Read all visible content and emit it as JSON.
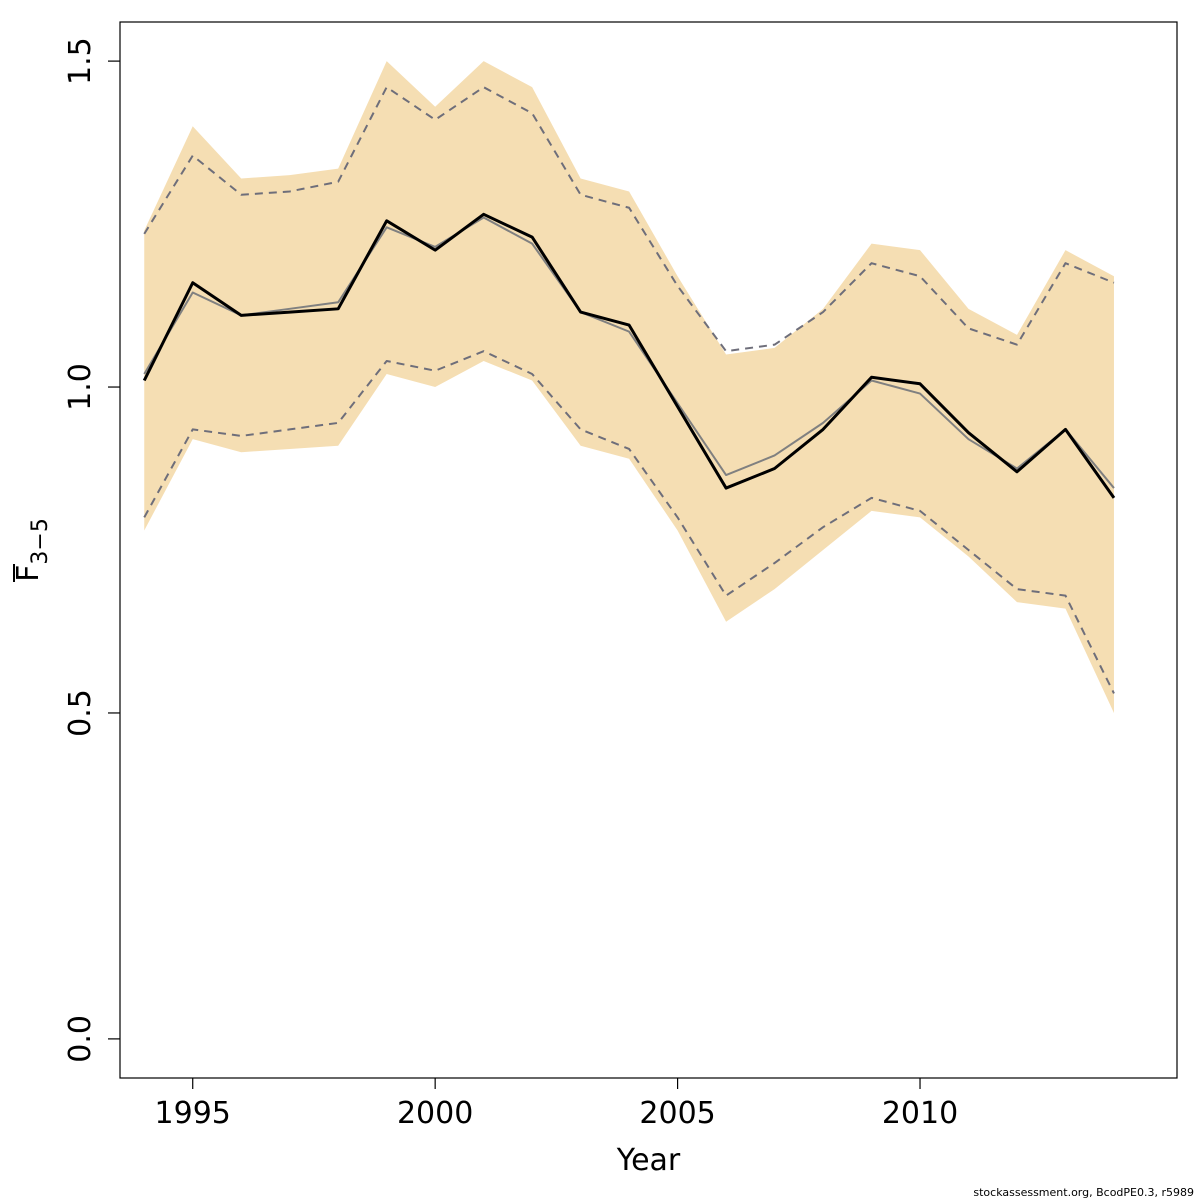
{
  "chart_data": {
    "type": "line",
    "title": "",
    "xlabel": "Year",
    "ylabel": {
      "main": "F",
      "subscript": "3−5",
      "overline": true
    },
    "xlim": [
      1993.5,
      2015.3
    ],
    "ylim": [
      -0.06,
      1.56
    ],
    "x_ticks": [
      1995,
      2000,
      2005,
      2010
    ],
    "y_ticks": [
      0.0,
      0.5,
      1.0,
      1.5
    ],
    "y_tick_labels": [
      "0.0",
      "0.5",
      "1.0",
      "1.5"
    ],
    "x": [
      1994,
      1995,
      1996,
      1997,
      1998,
      1999,
      2000,
      2001,
      2002,
      2003,
      2004,
      2005,
      2006,
      2007,
      2008,
      2009,
      2010,
      2011,
      2012,
      2013,
      2014
    ],
    "band": {
      "upper": [
        1.24,
        1.4,
        1.32,
        1.325,
        1.335,
        1.5,
        1.43,
        1.5,
        1.46,
        1.32,
        1.3,
        1.17,
        1.05,
        1.06,
        1.12,
        1.22,
        1.21,
        1.12,
        1.08,
        1.21,
        1.17
      ],
      "lower": [
        0.78,
        0.92,
        0.9,
        0.905,
        0.91,
        1.02,
        1.0,
        1.04,
        1.01,
        0.91,
        0.89,
        0.78,
        0.64,
        0.69,
        0.75,
        0.81,
        0.8,
        0.74,
        0.67,
        0.66,
        0.5
      ],
      "color": "#f5deb3"
    },
    "series": [
      {
        "values": [
          1.01,
          1.16,
          1.11,
          1.115,
          1.12,
          1.255,
          1.21,
          1.265,
          1.23,
          1.115,
          1.095,
          0.97,
          0.845,
          0.875,
          0.935,
          1.015,
          1.005,
          0.93,
          0.87,
          0.935,
          0.83
        ],
        "color": "#000000",
        "style": "solid",
        "width": 3
      },
      {
        "values": [
          1.02,
          1.145,
          1.11,
          1.12,
          1.13,
          1.245,
          1.215,
          1.26,
          1.22,
          1.115,
          1.085,
          0.975,
          0.865,
          0.895,
          0.945,
          1.01,
          0.99,
          0.92,
          0.875,
          0.935,
          0.845
        ],
        "color": "#808080",
        "style": "solid",
        "width": 2
      },
      {
        "values": [
          1.235,
          1.355,
          1.295,
          1.3,
          1.315,
          1.46,
          1.41,
          1.46,
          1.42,
          1.295,
          1.275,
          1.155,
          1.055,
          1.065,
          1.115,
          1.19,
          1.17,
          1.09,
          1.065,
          1.19,
          1.16
        ],
        "color": "#6e6e7a",
        "style": "dashed",
        "width": 2
      },
      {
        "values": [
          0.8,
          0.935,
          0.925,
          0.935,
          0.945,
          1.04,
          1.025,
          1.055,
          1.02,
          0.935,
          0.905,
          0.8,
          0.68,
          0.73,
          0.785,
          0.83,
          0.81,
          0.75,
          0.69,
          0.68,
          0.53
        ],
        "color": "#6e6e7a",
        "style": "dashed",
        "width": 2
      }
    ]
  },
  "footer": "stockassessment.org, BcodPE0.3, r5989"
}
